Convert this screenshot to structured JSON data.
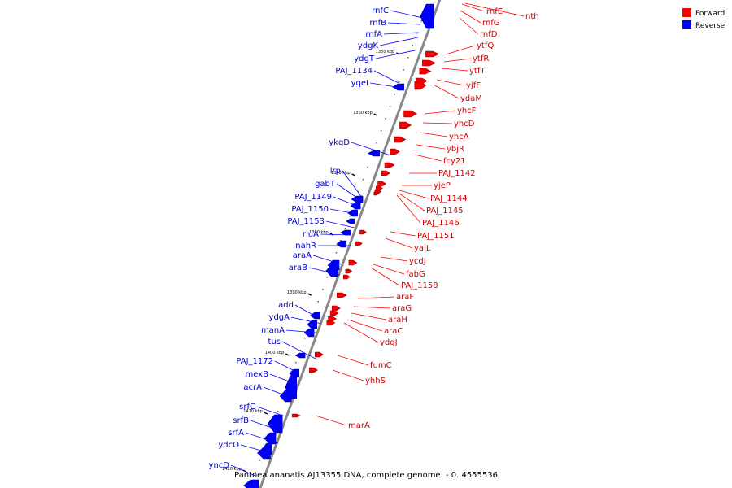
{
  "caption": "Pantoea ananatis AJ13355 DNA, complete genome. - 0..4555536",
  "legend": [
    {
      "label": "Forward",
      "color": "#ff0000"
    },
    {
      "label": "Reverse",
      "color": "#0000ff"
    }
  ],
  "ticks": [
    "1350 kbp",
    "1360 kbp",
    "1370 kbp",
    "1380 kbp",
    "1390 kbp",
    "1400 kbp",
    "1410 kbp",
    "1420 kbp"
  ],
  "forward_genes": [
    "rnfE",
    "nth",
    "rnfG",
    "rnfD",
    "ytfQ",
    "ytfR",
    "ytfT",
    "yjfF",
    "ydaM",
    "yhcF",
    "yhcD",
    "yhcA",
    "ybjR",
    "fcy21",
    "PAJ_1142",
    "yjeP",
    "PAJ_1144",
    "PAJ_1145",
    "PAJ_1146",
    "PAJ_1151",
    "yaiL",
    "ycdJ",
    "fabG",
    "PAJ_1158",
    "araF",
    "araG",
    "araH",
    "araC",
    "ydgJ",
    "fumC",
    "yhhS",
    "marA"
  ],
  "reverse_genes": [
    "rnfC",
    "rnfB",
    "rnfA",
    "ydgK",
    "ydgT",
    "PAJ_1134",
    "yqeI",
    "ykgD",
    "lrp",
    "gabT",
    "PAJ_1149",
    "PAJ_1150",
    "PAJ_1153",
    "rluA",
    "nahR",
    "araA",
    "araB",
    "add",
    "ydgA",
    "manA",
    "tus",
    "PAJ_1172",
    "mexB",
    "acrA",
    "srfC",
    "srfB",
    "srfA",
    "ydcO",
    "yncD"
  ]
}
